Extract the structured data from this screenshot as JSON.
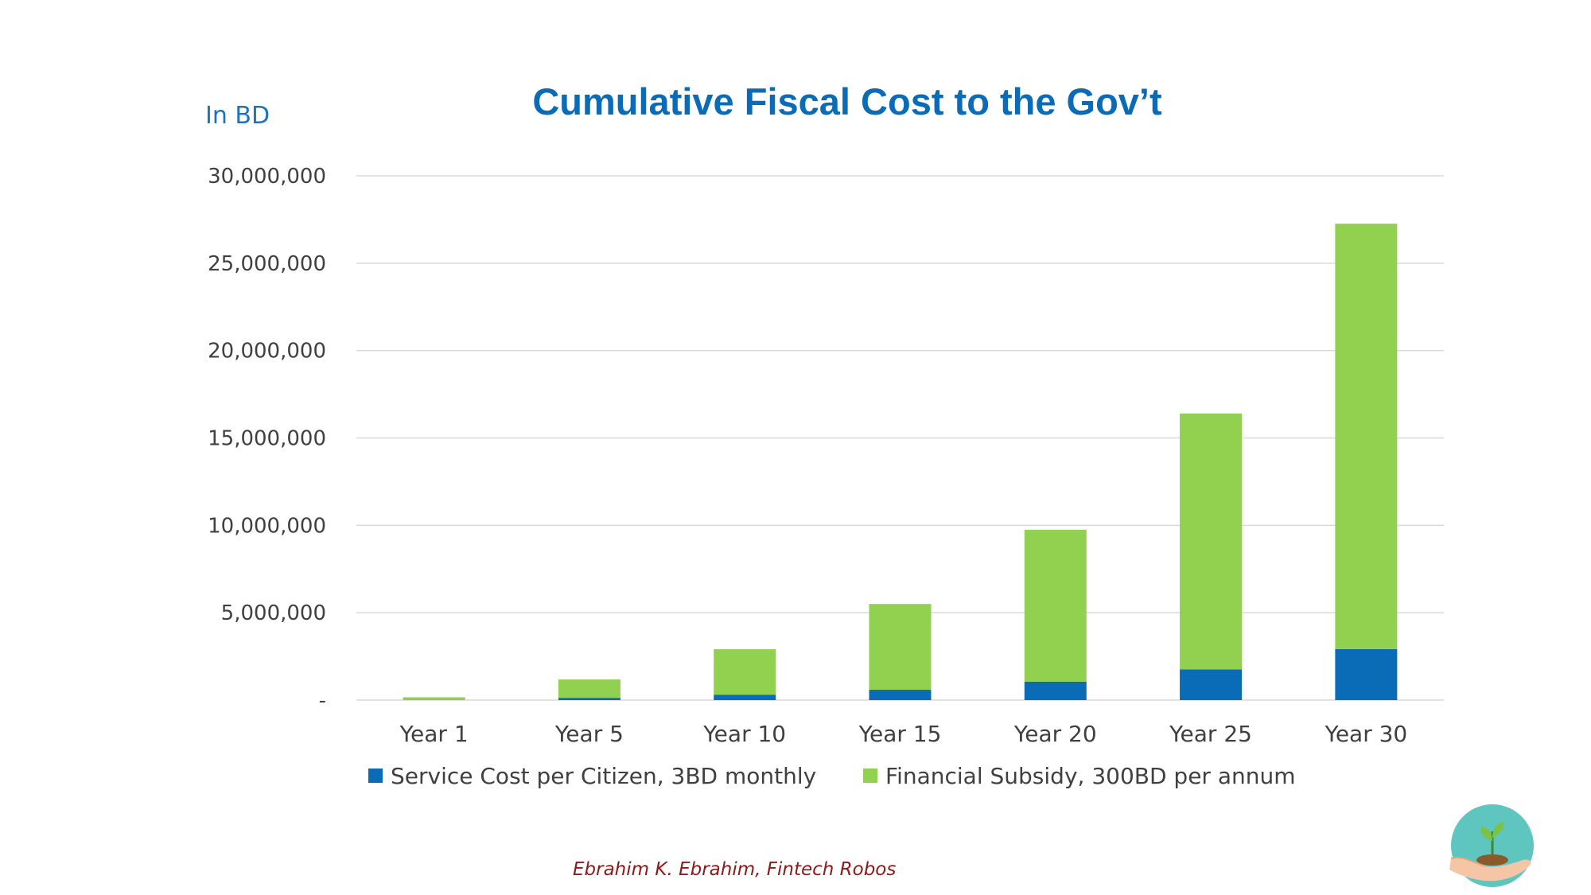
{
  "page": {
    "author": "Ebrahim K. Ebrahim, Fintech Robos",
    "logo_name": "plant-in-hand-logo"
  },
  "colors": {
    "service": "#0a6cb7",
    "subsidy": "#92d050",
    "title": "#0a6cb7",
    "grid": "#d9d9d9"
  },
  "chart_data": {
    "type": "bar",
    "stacked": true,
    "title": "Cumulative Fiscal Cost to the Gov’t",
    "ylabel": "In BD",
    "xlabel": "",
    "categories": [
      "Year 1",
      "Year 5",
      "Year 10",
      "Year 15",
      "Year 20",
      "Year 25",
      "Year 30"
    ],
    "series": [
      {
        "name": "Service Cost per Citizen, 3BD monthly",
        "values": [
          10000,
          130000,
          310000,
          590000,
          1050000,
          1760000,
          2920000
        ]
      },
      {
        "name": "Financial Subsidy, 300BD per annum",
        "values": [
          150000,
          1050000,
          2600000,
          4910000,
          8700000,
          14640000,
          24340000
        ]
      }
    ],
    "ylim": [
      0,
      30000000
    ],
    "yticks": [
      0,
      5000000,
      10000000,
      15000000,
      20000000,
      25000000,
      30000000
    ],
    "ytick_labels": [
      "-",
      "5,000,000",
      "10,000,000",
      "15,000,000",
      "20,000,000",
      "25,000,000",
      "30,000,000"
    ],
    "grid": true,
    "legend_position": "bottom"
  }
}
